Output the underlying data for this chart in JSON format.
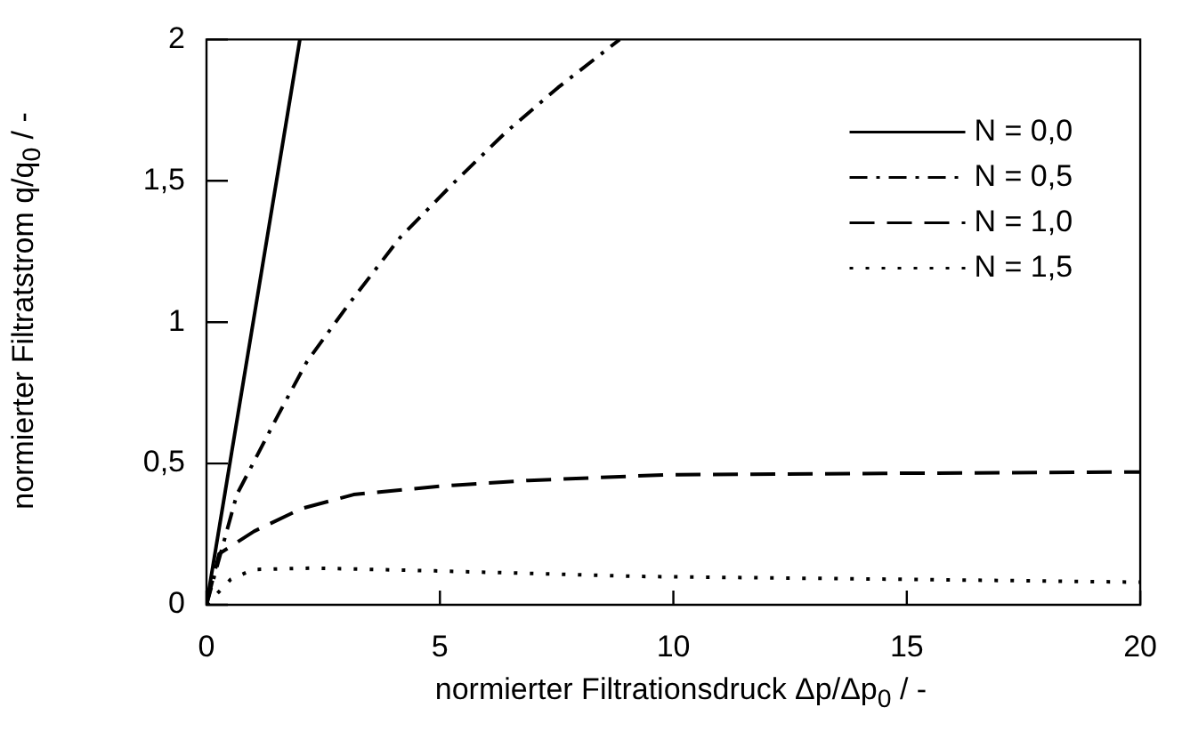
{
  "chart_data": {
    "type": "line",
    "xlabel": "normierter Filtrationsdruck Δp/Δp$_{0}$   /  -",
    "ylabel": "normierter Filtratstrom q/q$_{0}$   /  -",
    "xlim": [
      0,
      20
    ],
    "xticks": [
      0,
      5,
      10,
      15,
      20
    ],
    "ylim": [
      0,
      2
    ],
    "yticks": [
      0,
      {
        "value": 0.5,
        "label": "0,5"
      },
      1,
      {
        "value": 1.5,
        "label": "1,5"
      },
      2
    ],
    "grid": false,
    "legend": "top right",
    "marker": "none",
    "series": [
      {
        "name": "N = 0,0",
        "color": "#000000",
        "line_style": "solid",
        "x": [
          0,
          2
        ],
        "values": [
          0,
          2
        ]
      },
      {
        "name": "N = 0,5",
        "color": "#000000",
        "line_style": "dashdot",
        "x": [
          0,
          0.65,
          1.53,
          2.15,
          3.03,
          4.15,
          5.28,
          6.4,
          7.53,
          8.85
        ],
        "values": [
          0,
          0.39,
          0.67,
          0.86,
          1.06,
          1.3,
          1.49,
          1.67,
          1.83,
          2
        ]
      },
      {
        "name": "N = 1,0",
        "color": "#000000",
        "line_style": "dashed",
        "x": [
          0,
          0.27,
          1.02,
          2.03,
          3.15,
          5.03,
          6.9,
          9.84,
          14.5,
          20
        ],
        "values": [
          0,
          0.18,
          0.26,
          0.34,
          0.39,
          0.42,
          0.44,
          0.46,
          0.465,
          0.47
        ]
      },
      {
        "name": "N = 1,5",
        "color": "#000000",
        "line_style": "dotted",
        "x": [
          0,
          0.52,
          1,
          2.3,
          4.9,
          9.4,
          15,
          20
        ],
        "values": [
          0,
          0.09,
          0.125,
          0.13,
          0.12,
          0.1,
          0.09,
          0.08
        ]
      }
    ]
  }
}
